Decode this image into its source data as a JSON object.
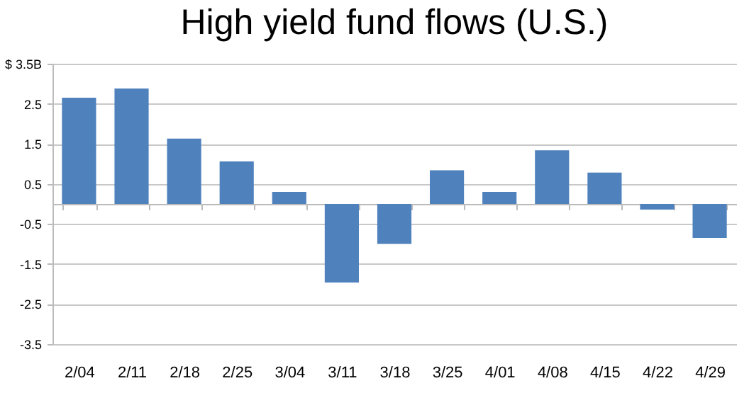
{
  "chart_data": {
    "type": "bar",
    "title": "High yield fund flows (U.S.)",
    "categories": [
      "2/04",
      "2/11",
      "2/18",
      "2/25",
      "3/04",
      "3/11",
      "3/18",
      "3/25",
      "4/01",
      "4/08",
      "4/15",
      "4/22",
      "4/29"
    ],
    "values": [
      2.65,
      2.88,
      1.63,
      1.06,
      0.3,
      -1.96,
      -1.0,
      0.84,
      0.3,
      1.34,
      0.78,
      -0.14,
      -0.85
    ],
    "color": "#4f81bd",
    "ylim": [
      -3.5,
      3.5
    ],
    "yticks": [
      {
        "value": 3.5,
        "label": "$ 3.5B"
      },
      2.5,
      1.5,
      0.5,
      -0.5,
      -1.5,
      -2.5,
      -3.5
    ],
    "grid": "y"
  }
}
